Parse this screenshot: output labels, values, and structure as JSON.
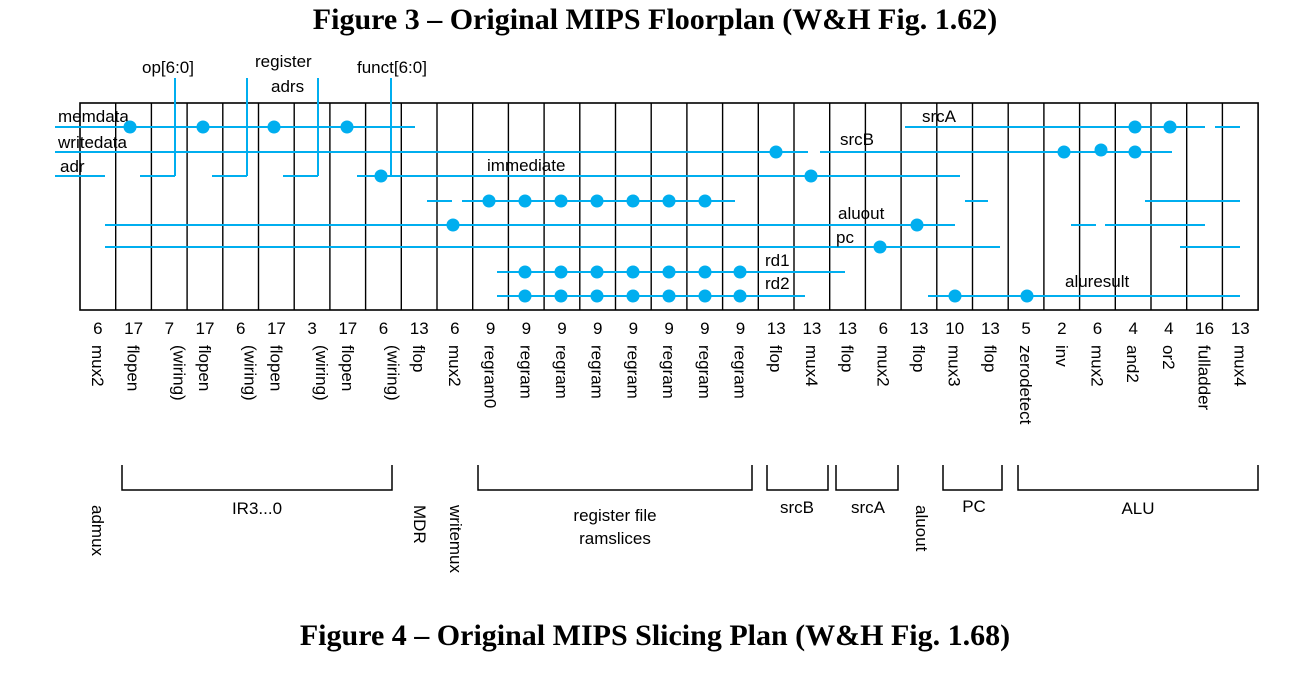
{
  "figure_titles": {
    "top": "Figure 3 – Original MIPS Floorplan (W&H Fig. 1.62)",
    "bottom": "Figure 4 – Original MIPS Slicing Plan (W&H Fig. 1.68)"
  },
  "control_inputs": {
    "op": "op[6:0]",
    "register_line1": "register",
    "register_line2": "adrs",
    "funct": "funct[6:0]"
  },
  "wire_labels": {
    "memdata": "memdata",
    "writedata": "writedata",
    "adr": "adr",
    "srcA": "srcA",
    "srcB": "srcB",
    "immediate": "immediate",
    "aluout": "aluout",
    "pc": "pc",
    "rd1": "rd1",
    "rd2": "rd2",
    "aluresult": "aluresult"
  },
  "columns": [
    {
      "number": "6",
      "cell": "mux2"
    },
    {
      "number": "17",
      "cell": "flopen"
    },
    {
      "number": "7",
      "cell": "(wiring)"
    },
    {
      "number": "17",
      "cell": "flopen"
    },
    {
      "number": "6",
      "cell": "(wiring)"
    },
    {
      "number": "17",
      "cell": "flopen"
    },
    {
      "number": "3",
      "cell": "(wiring)"
    },
    {
      "number": "17",
      "cell": "flopen"
    },
    {
      "number": "6",
      "cell": "(wiring)"
    },
    {
      "number": "13",
      "cell": "flop"
    },
    {
      "number": "6",
      "cell": "mux2"
    },
    {
      "number": "9",
      "cell": "regram0"
    },
    {
      "number": "9",
      "cell": "regram"
    },
    {
      "number": "9",
      "cell": "regram"
    },
    {
      "number": "9",
      "cell": "regram"
    },
    {
      "number": "9",
      "cell": "regram"
    },
    {
      "number": "9",
      "cell": "regram"
    },
    {
      "number": "9",
      "cell": "regram"
    },
    {
      "number": "9",
      "cell": "regram"
    },
    {
      "number": "13",
      "cell": "flop"
    },
    {
      "number": "13",
      "cell": "mux4"
    },
    {
      "number": "13",
      "cell": "flop"
    },
    {
      "number": "6",
      "cell": "mux2"
    },
    {
      "number": "13",
      "cell": "flop"
    },
    {
      "number": "10",
      "cell": "mux3"
    },
    {
      "number": "13",
      "cell": "flop"
    },
    {
      "number": "5",
      "cell": "zerodetect"
    },
    {
      "number": "2",
      "cell": "inv"
    },
    {
      "number": "6",
      "cell": "mux2"
    },
    {
      "number": "4",
      "cell": "and2"
    },
    {
      "number": "4",
      "cell": "or2"
    },
    {
      "number": "16",
      "cell": "fulladder"
    },
    {
      "number": "13",
      "cell": "mux4"
    }
  ],
  "groups": [
    {
      "lines": [
        "IR3...0"
      ]
    },
    {
      "lines": [
        "register file",
        "ramslices"
      ]
    },
    {
      "lines": [
        "srcB"
      ]
    },
    {
      "lines": [
        "srcA"
      ]
    },
    {
      "lines": [
        "PC"
      ]
    },
    {
      "lines": [
        "ALU"
      ]
    }
  ],
  "unit_labels": {
    "admux": "admux",
    "mdr": "MDR",
    "writemux": "writemux",
    "aluout": "aluout"
  },
  "colors": {
    "wire": "#00aeef",
    "outline": "#000000"
  }
}
